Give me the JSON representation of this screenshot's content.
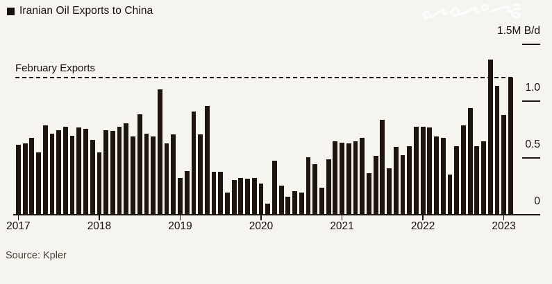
{
  "header": {
    "title": "Iranian Oil Exports to China"
  },
  "icons": {
    "legend_marker": "black-square-legend-icon",
    "watermark": "persian-script-watermark"
  },
  "footer": {
    "source": "Source: Kpler"
  },
  "colors": {
    "background": "#f6f4ef",
    "bar": "#1e150e",
    "axis": "#1a1510",
    "text": "#15110d",
    "source_text": "#48423b",
    "watermark": "#ffffff"
  },
  "chart_data": {
    "type": "bar",
    "title": "Iranian Oil Exports to China",
    "unit": "M B/d",
    "x_interval": "month",
    "categories": [
      "2017-01",
      "2017-02",
      "2017-03",
      "2017-04",
      "2017-05",
      "2017-06",
      "2017-07",
      "2017-08",
      "2017-09",
      "2017-10",
      "2017-11",
      "2017-12",
      "2018-01",
      "2018-02",
      "2018-03",
      "2018-04",
      "2018-05",
      "2018-06",
      "2018-07",
      "2018-08",
      "2018-09",
      "2018-10",
      "2018-11",
      "2018-12",
      "2019-01",
      "2019-02",
      "2019-03",
      "2019-04",
      "2019-05",
      "2019-06",
      "2019-07",
      "2019-08",
      "2019-09",
      "2019-10",
      "2019-11",
      "2019-12",
      "2020-01",
      "2020-02",
      "2020-03",
      "2020-04",
      "2020-05",
      "2020-06",
      "2020-07",
      "2020-08",
      "2020-09",
      "2020-10",
      "2020-11",
      "2020-12",
      "2021-01",
      "2021-02",
      "2021-03",
      "2021-04",
      "2021-05",
      "2021-06",
      "2021-07",
      "2021-08",
      "2021-09",
      "2021-10",
      "2021-11",
      "2021-12",
      "2022-01",
      "2022-02",
      "2022-03",
      "2022-04",
      "2022-05",
      "2022-06",
      "2022-07",
      "2022-08",
      "2022-09",
      "2022-10",
      "2022-11",
      "2022-12",
      "2023-01",
      "2023-02"
    ],
    "values": [
      0.61,
      0.62,
      0.67,
      0.54,
      0.78,
      0.71,
      0.74,
      0.77,
      0.69,
      0.76,
      0.75,
      0.65,
      0.54,
      0.74,
      0.73,
      0.77,
      0.8,
      0.68,
      0.88,
      0.71,
      0.68,
      1.1,
      0.62,
      0.7,
      0.32,
      0.38,
      0.9,
      0.7,
      0.95,
      0.37,
      0.37,
      0.19,
      0.3,
      0.32,
      0.31,
      0.32,
      0.27,
      0.09,
      0.47,
      0.25,
      0.15,
      0.2,
      0.19,
      0.5,
      0.44,
      0.23,
      0.48,
      0.64,
      0.63,
      0.62,
      0.64,
      0.67,
      0.36,
      0.51,
      0.83,
      0.4,
      0.59,
      0.52,
      0.6,
      0.77,
      0.77,
      0.76,
      0.68,
      0.67,
      0.35,
      0.6,
      0.78,
      0.93,
      0.6,
      0.64,
      1.36,
      1.13,
      0.87,
      1.2
    ],
    "x_year_ticks": [
      "2017",
      "2018",
      "2019",
      "2020",
      "2021",
      "2022",
      "2023"
    ],
    "y_axis": {
      "side": "right",
      "ylim": [
        0,
        1.5
      ],
      "ticks": [
        {
          "label": "1.5M B/d",
          "value": 1.5,
          "tick_mark": true
        },
        {
          "label": "1.0",
          "value": 1.0,
          "tick_mark": true
        },
        {
          "label": "0.5",
          "value": 0.5,
          "tick_mark": true
        },
        {
          "label": "0",
          "value": 0,
          "tick_mark": false
        }
      ]
    },
    "reference_line": {
      "label": "February Exports",
      "value": 1.2,
      "style": "dashed"
    },
    "grid": false,
    "legend_position": "top-left"
  }
}
